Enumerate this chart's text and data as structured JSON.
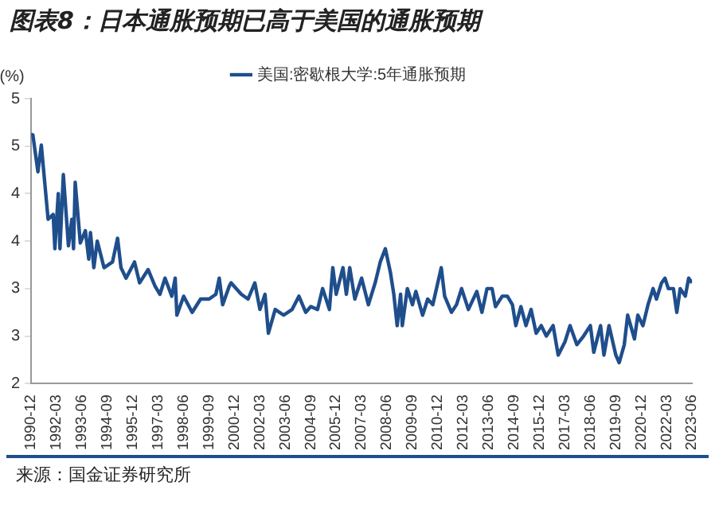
{
  "chart_data": {
    "type": "line",
    "title": "图表8：日本通胀预期已高于美国的通胀预期",
    "ylabel": "(%)",
    "annotations": [
      "来源：国金证券研究所"
    ],
    "legend": "top",
    "grid": false,
    "marker": "none",
    "line_style": "solid",
    "xlim": [
      "1990-12",
      "2023-06"
    ],
    "xticks": [
      "1990-12",
      "1992-03",
      "1993-06",
      "1994-09",
      "1995-12",
      "1997-03",
      "1998-06",
      "1999-09",
      "2000-12",
      "2002-03",
      "2003-06",
      "2004-09",
      "2005-12",
      "2007-03",
      "2008-06",
      "2009-09",
      "2010-12",
      "2012-03",
      "2013-06",
      "2014-09",
      "2015-12",
      "2017-03",
      "2018-06",
      "2019-09",
      "2020-12",
      "2022-03",
      "2023-06"
    ],
    "ylim": [
      2,
      5
    ],
    "yticks": [
      2,
      {
        "value": 2.5,
        "label": "3"
      },
      3,
      {
        "value": 3.5,
        "label": "4"
      },
      4,
      {
        "value": 4.5,
        "label": "5"
      },
      5
    ],
    "series": [
      {
        "name": "美国:密歇根大学:5年通胀预期",
        "color": "#1f4e8c",
        "x": [
          "1990-12",
          "1991-01",
          "1991-04",
          "1991-06",
          "1991-08",
          "1991-10",
          "1992-01",
          "1992-02",
          "1992-04",
          "1992-05",
          "1992-07",
          "1992-10",
          "1992-12",
          "1993-01",
          "1993-02",
          "1993-05",
          "1993-08",
          "1993-10",
          "1993-11",
          "1994-01",
          "1994-03",
          "1994-07",
          "1994-12",
          "1995-03",
          "1995-05",
          "1995-08",
          "1996-01",
          "1996-04",
          "1996-09",
          "1997-01",
          "1997-04",
          "1997-07",
          "1997-11",
          "1998-01",
          "1998-02",
          "1998-06",
          "1998-11",
          "1999-04",
          "1999-09",
          "2000-01",
          "2000-03",
          "2000-05",
          "2000-09",
          "2000-10",
          "2001-04",
          "2001-08",
          "2001-12",
          "2002-03",
          "2002-06",
          "2002-08",
          "2002-12",
          "2003-05",
          "2003-10",
          "2004-02",
          "2004-06",
          "2004-09",
          "2005-01",
          "2005-04",
          "2005-08",
          "2005-10",
          "2005-12",
          "2006-04",
          "2006-06",
          "2006-08",
          "2006-11",
          "2007-03",
          "2007-07",
          "2007-11",
          "2008-02",
          "2008-05",
          "2008-08",
          "2008-10",
          "2008-12",
          "2009-02",
          "2009-03",
          "2009-06",
          "2009-09",
          "2009-11",
          "2010-03",
          "2010-06",
          "2010-09",
          "2011-02",
          "2011-04",
          "2011-08",
          "2011-11",
          "2012-02",
          "2012-06",
          "2012-11",
          "2013-02",
          "2013-05",
          "2013-08",
          "2013-10",
          "2014-02",
          "2014-05",
          "2014-08",
          "2014-10",
          "2015-01",
          "2015-04",
          "2015-07",
          "2015-10",
          "2016-01",
          "2016-04",
          "2016-08",
          "2016-11",
          "2017-03",
          "2017-06",
          "2017-10",
          "2018-02",
          "2018-06",
          "2018-08",
          "2018-12",
          "2019-02",
          "2019-05",
          "2019-09",
          "2019-11",
          "2020-02",
          "2020-04",
          "2020-08",
          "2020-10",
          "2021-01",
          "2021-04",
          "2021-07",
          "2021-09",
          "2021-12",
          "2022-02",
          "2022-04",
          "2022-07",
          "2022-09",
          "2022-11",
          "2023-02",
          "2023-04",
          "2023-06"
        ],
        "values": [
          4.62,
          4.62,
          4.23,
          4.51,
          4.12,
          3.73,
          3.78,
          3.42,
          4.0,
          3.42,
          4.2,
          3.45,
          3.73,
          3.42,
          4.12,
          3.48,
          3.61,
          3.31,
          3.59,
          3.22,
          3.5,
          3.22,
          3.28,
          3.53,
          3.22,
          3.11,
          3.28,
          3.06,
          3.2,
          3.03,
          2.94,
          3.11,
          2.92,
          3.11,
          2.72,
          2.92,
          2.75,
          2.89,
          2.89,
          2.94,
          3.11,
          2.83,
          3.03,
          3.06,
          2.94,
          2.89,
          3.06,
          2.78,
          2.94,
          2.53,
          2.78,
          2.72,
          2.78,
          2.92,
          2.75,
          2.81,
          2.78,
          3.0,
          2.78,
          3.22,
          2.94,
          3.22,
          2.94,
          3.22,
          2.89,
          3.11,
          2.83,
          3.06,
          3.28,
          3.42,
          3.17,
          2.94,
          2.61,
          2.94,
          2.61,
          3.0,
          2.83,
          2.97,
          2.72,
          2.89,
          2.83,
          3.22,
          2.92,
          2.75,
          2.83,
          3.0,
          2.78,
          2.97,
          2.75,
          3.0,
          3.0,
          2.81,
          2.92,
          2.92,
          2.83,
          2.61,
          2.81,
          2.61,
          2.78,
          2.53,
          2.61,
          2.5,
          2.61,
          2.3,
          2.44,
          2.61,
          2.41,
          2.5,
          2.61,
          2.33,
          2.61,
          2.3,
          2.61,
          2.3,
          2.22,
          2.41,
          2.72,
          2.47,
          2.72,
          2.61,
          2.83,
          3.0,
          2.89,
          3.06,
          3.11,
          3.0,
          3.0,
          2.75,
          3.0,
          2.92,
          3.11,
          3.06
        ]
      }
    ]
  }
}
